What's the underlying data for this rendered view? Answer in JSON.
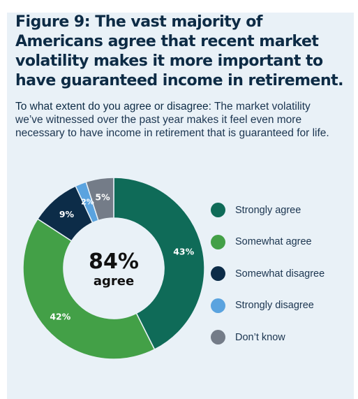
{
  "figure": {
    "label": "Figure 9:",
    "title": "The vast majority of Americans agree that recent market volatility makes it more important to have guaranteed income in retirement."
  },
  "question": {
    "lead": "To what extent do you agree or disagree:",
    "text": "The market volatility we’ve witnessed over the past year makes it feel even more necessary to have income in retirement that is guaranteed for life."
  },
  "center": {
    "value": "84%",
    "label": "agree"
  },
  "chart_data": {
    "type": "pie",
    "donut": true,
    "legend_position": "right",
    "slices": [
      {
        "name": "Strongly agree",
        "value": 43,
        "label": "43%",
        "color": "#0f6b58"
      },
      {
        "name": "Somewhat agree",
        "value": 42,
        "label": "42%",
        "color": "#43a047"
      },
      {
        "name": "Somewhat disagree",
        "value": 9,
        "label": "9%",
        "color": "#0c2c48"
      },
      {
        "name": "Strongly disagree",
        "value": 2,
        "label": "2%",
        "color": "#5aa3df"
      },
      {
        "name": "Don’t know",
        "value": 5,
        "label": "5%",
        "color": "#747c88"
      }
    ]
  }
}
